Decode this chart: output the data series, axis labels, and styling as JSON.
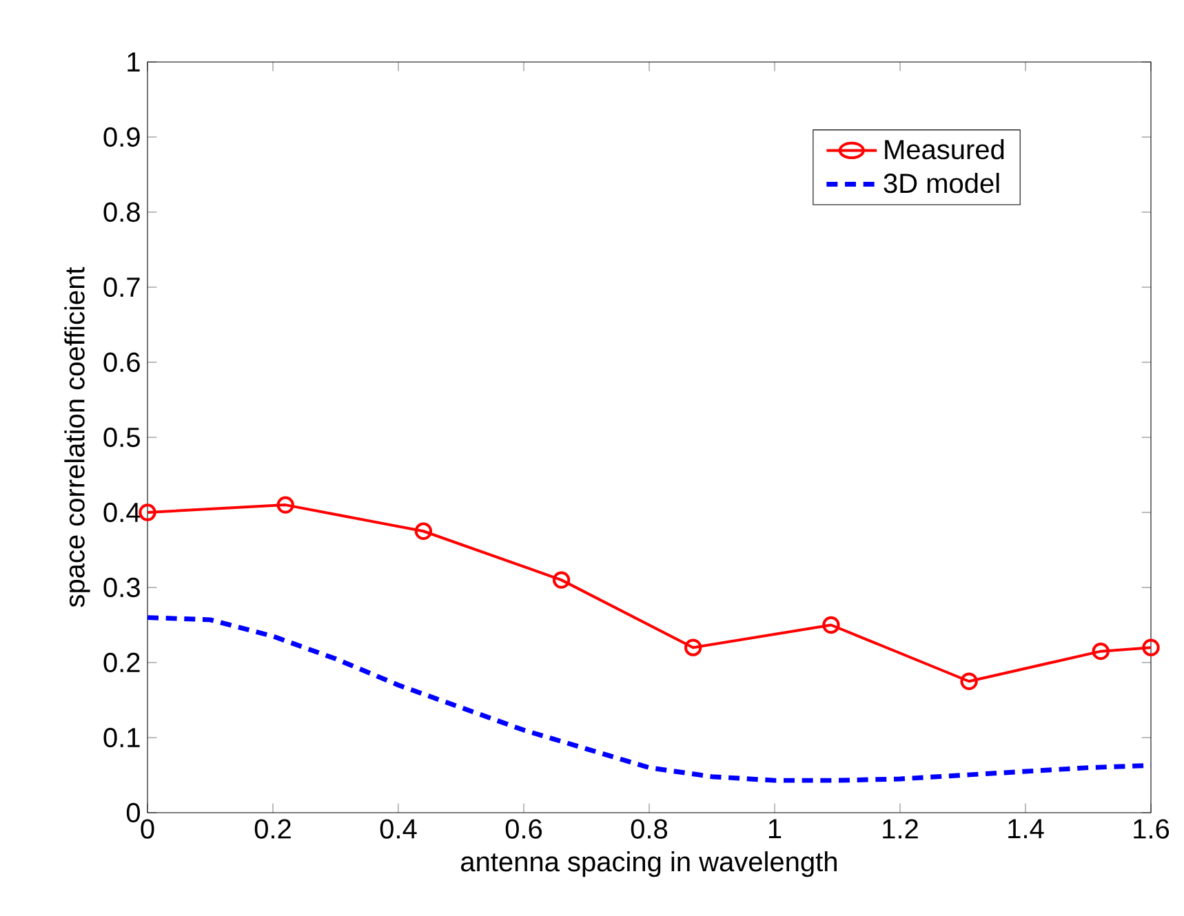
{
  "chart_data": {
    "type": "line",
    "xlabel": "antenna spacing in wavelength",
    "ylabel": "space correlation coefficient",
    "xlim": [
      0,
      1.6
    ],
    "ylim": [
      0,
      1
    ],
    "xticks": [
      0,
      0.2,
      0.4,
      0.6,
      0.8,
      1,
      1.2,
      1.4,
      1.6
    ],
    "yticks": [
      0,
      0.1,
      0.2,
      0.3,
      0.4,
      0.5,
      0.6,
      0.7,
      0.8,
      0.9,
      1
    ],
    "legend": "top right",
    "grid": false,
    "series": [
      {
        "name": "Measured",
        "color": "#ff0000",
        "marker": "circle",
        "line_style": "solid",
        "x": [
          0,
          0.22,
          0.44,
          0.66,
          0.87,
          1.09,
          1.31,
          1.52,
          1.6
        ],
        "values": [
          0.4,
          0.41,
          0.375,
          0.31,
          0.22,
          0.25,
          0.175,
          0.215,
          0.22
        ]
      },
      {
        "name": "3D model",
        "color": "#0000ff",
        "marker": "none",
        "line_style": "dashed",
        "x": [
          0,
          0.1,
          0.2,
          0.3,
          0.4,
          0.5,
          0.6,
          0.7,
          0.8,
          0.9,
          1.0,
          1.1,
          1.2,
          1.3,
          1.4,
          1.5,
          1.6
        ],
        "values": [
          0.26,
          0.257,
          0.235,
          0.205,
          0.17,
          0.14,
          0.11,
          0.085,
          0.06,
          0.048,
          0.043,
          0.043,
          0.045,
          0.05,
          0.055,
          0.06,
          0.063
        ]
      }
    ]
  }
}
